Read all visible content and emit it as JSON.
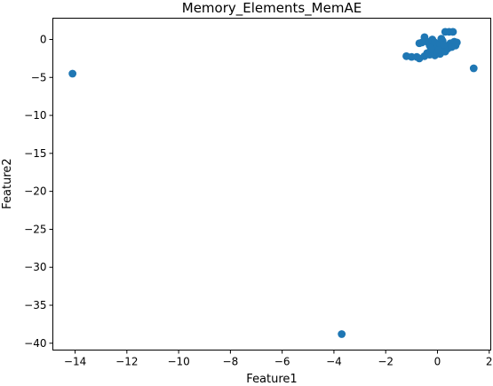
{
  "chart_data": {
    "type": "scatter",
    "title": "Memory_Elements_MemAE",
    "xlabel": "Feature1",
    "ylabel": "Feature2",
    "xlim": [
      -14.86,
      2.06
    ],
    "ylim": [
      -40.9,
      2.8
    ],
    "xticks": [
      -14,
      -12,
      -10,
      -8,
      -6,
      -4,
      -2,
      0,
      2
    ],
    "yticks": [
      0,
      -5,
      -10,
      -15,
      -20,
      -25,
      -30,
      -35,
      -40
    ],
    "marker_color": "#1f77b4",
    "points": [
      {
        "x": -14.1,
        "y": -4.5
      },
      {
        "x": -3.7,
        "y": -38.8
      },
      {
        "x": 1.4,
        "y": -3.8
      },
      {
        "x": -1.2,
        "y": -2.2
      },
      {
        "x": -1.0,
        "y": -2.3
      },
      {
        "x": -0.8,
        "y": -2.3
      },
      {
        "x": -0.7,
        "y": -2.5
      },
      {
        "x": -0.5,
        "y": -2.2
      },
      {
        "x": -0.4,
        "y": -1.8
      },
      {
        "x": -0.3,
        "y": -2.0
      },
      {
        "x": -0.2,
        "y": -1.5
      },
      {
        "x": -0.1,
        "y": -2.1
      },
      {
        "x": 0.0,
        "y": -1.7
      },
      {
        "x": 0.1,
        "y": -1.9
      },
      {
        "x": 0.2,
        "y": -1.3
      },
      {
        "x": 0.3,
        "y": -1.6
      },
      {
        "x": 0.4,
        "y": -1.2
      },
      {
        "x": -0.7,
        "y": -0.5
      },
      {
        "x": -0.5,
        "y": 0.3
      },
      {
        "x": -0.4,
        "y": -0.3
      },
      {
        "x": -0.3,
        "y": -0.8
      },
      {
        "x": -0.2,
        "y": 0.0
      },
      {
        "x": -0.1,
        "y": -0.4
      },
      {
        "x": 0.0,
        "y": -1.0
      },
      {
        "x": 0.1,
        "y": -0.6
      },
      {
        "x": 0.2,
        "y": -0.2
      },
      {
        "x": 0.3,
        "y": 1.0
      },
      {
        "x": 0.35,
        "y": -0.9
      },
      {
        "x": 0.45,
        "y": 1.0
      },
      {
        "x": 0.5,
        "y": -0.5
      },
      {
        "x": 0.55,
        "y": -1.0
      },
      {
        "x": 0.6,
        "y": 1.0
      },
      {
        "x": 0.65,
        "y": -0.3
      },
      {
        "x": 0.7,
        "y": -0.8
      },
      {
        "x": 0.75,
        "y": -0.4
      },
      {
        "x": -0.6,
        "y": -0.4
      },
      {
        "x": -0.25,
        "y": -1.2
      },
      {
        "x": 0.05,
        "y": -1.4
      },
      {
        "x": 0.15,
        "y": 0.1
      },
      {
        "x": 0.25,
        "y": -0.7
      }
    ]
  }
}
